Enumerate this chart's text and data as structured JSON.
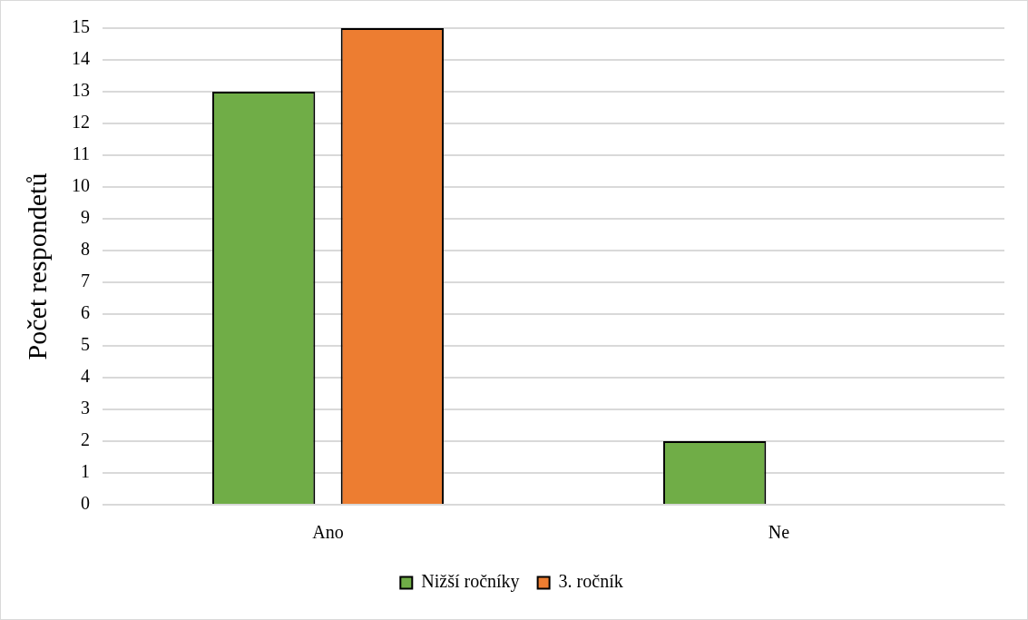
{
  "chart_data": {
    "type": "bar",
    "ylabel": "Počet respondetů",
    "categories": [
      "Ano",
      "Ne"
    ],
    "series": [
      {
        "name": "Nižší ročníky",
        "color": "#70ad47",
        "values": [
          13,
          2
        ]
      },
      {
        "name": "3. ročník",
        "color": "#ed7d31",
        "values": [
          15,
          0
        ]
      }
    ],
    "ylim": [
      0,
      15
    ],
    "yticks": [
      0,
      1,
      2,
      3,
      4,
      5,
      6,
      7,
      8,
      9,
      10,
      11,
      12,
      13,
      14,
      15
    ],
    "grid": "y",
    "legend": "bottom"
  }
}
